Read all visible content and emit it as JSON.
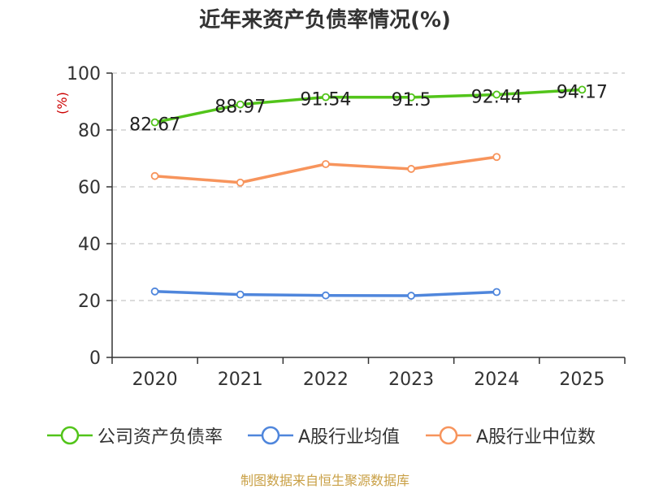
{
  "title": "近年来资产负债率情况(%)",
  "source": "制图数据来自恒生聚源数据库",
  "chart_data": {
    "type": "line",
    "title": "近年来资产负债率情况(%)",
    "ylabel": "(%)",
    "xlabel": "",
    "categories": [
      "2020",
      "2021",
      "2022",
      "2023",
      "2024",
      "2025"
    ],
    "ylim": [
      0,
      100
    ],
    "yticks": [
      0,
      20,
      40,
      60,
      80,
      100
    ],
    "grid": true,
    "legend_position": "bottom",
    "series": [
      {
        "name": "公司资产负债率",
        "color": "#52c41a",
        "labeled": true,
        "values": [
          82.67,
          88.97,
          91.54,
          91.5,
          92.44,
          94.17
        ],
        "labels": [
          "82.67",
          "88.97",
          "91.54",
          "91.5",
          "92.44",
          "94.17"
        ]
      },
      {
        "name": "A股行业均值",
        "color": "#4f86dc",
        "labeled": false,
        "values": [
          23.2,
          22.1,
          21.8,
          21.7,
          23.0,
          null
        ]
      },
      {
        "name": "A股行业中位数",
        "color": "#f7945c",
        "labeled": false,
        "values": [
          63.8,
          61.5,
          68.0,
          66.3,
          70.5,
          null
        ]
      }
    ]
  }
}
